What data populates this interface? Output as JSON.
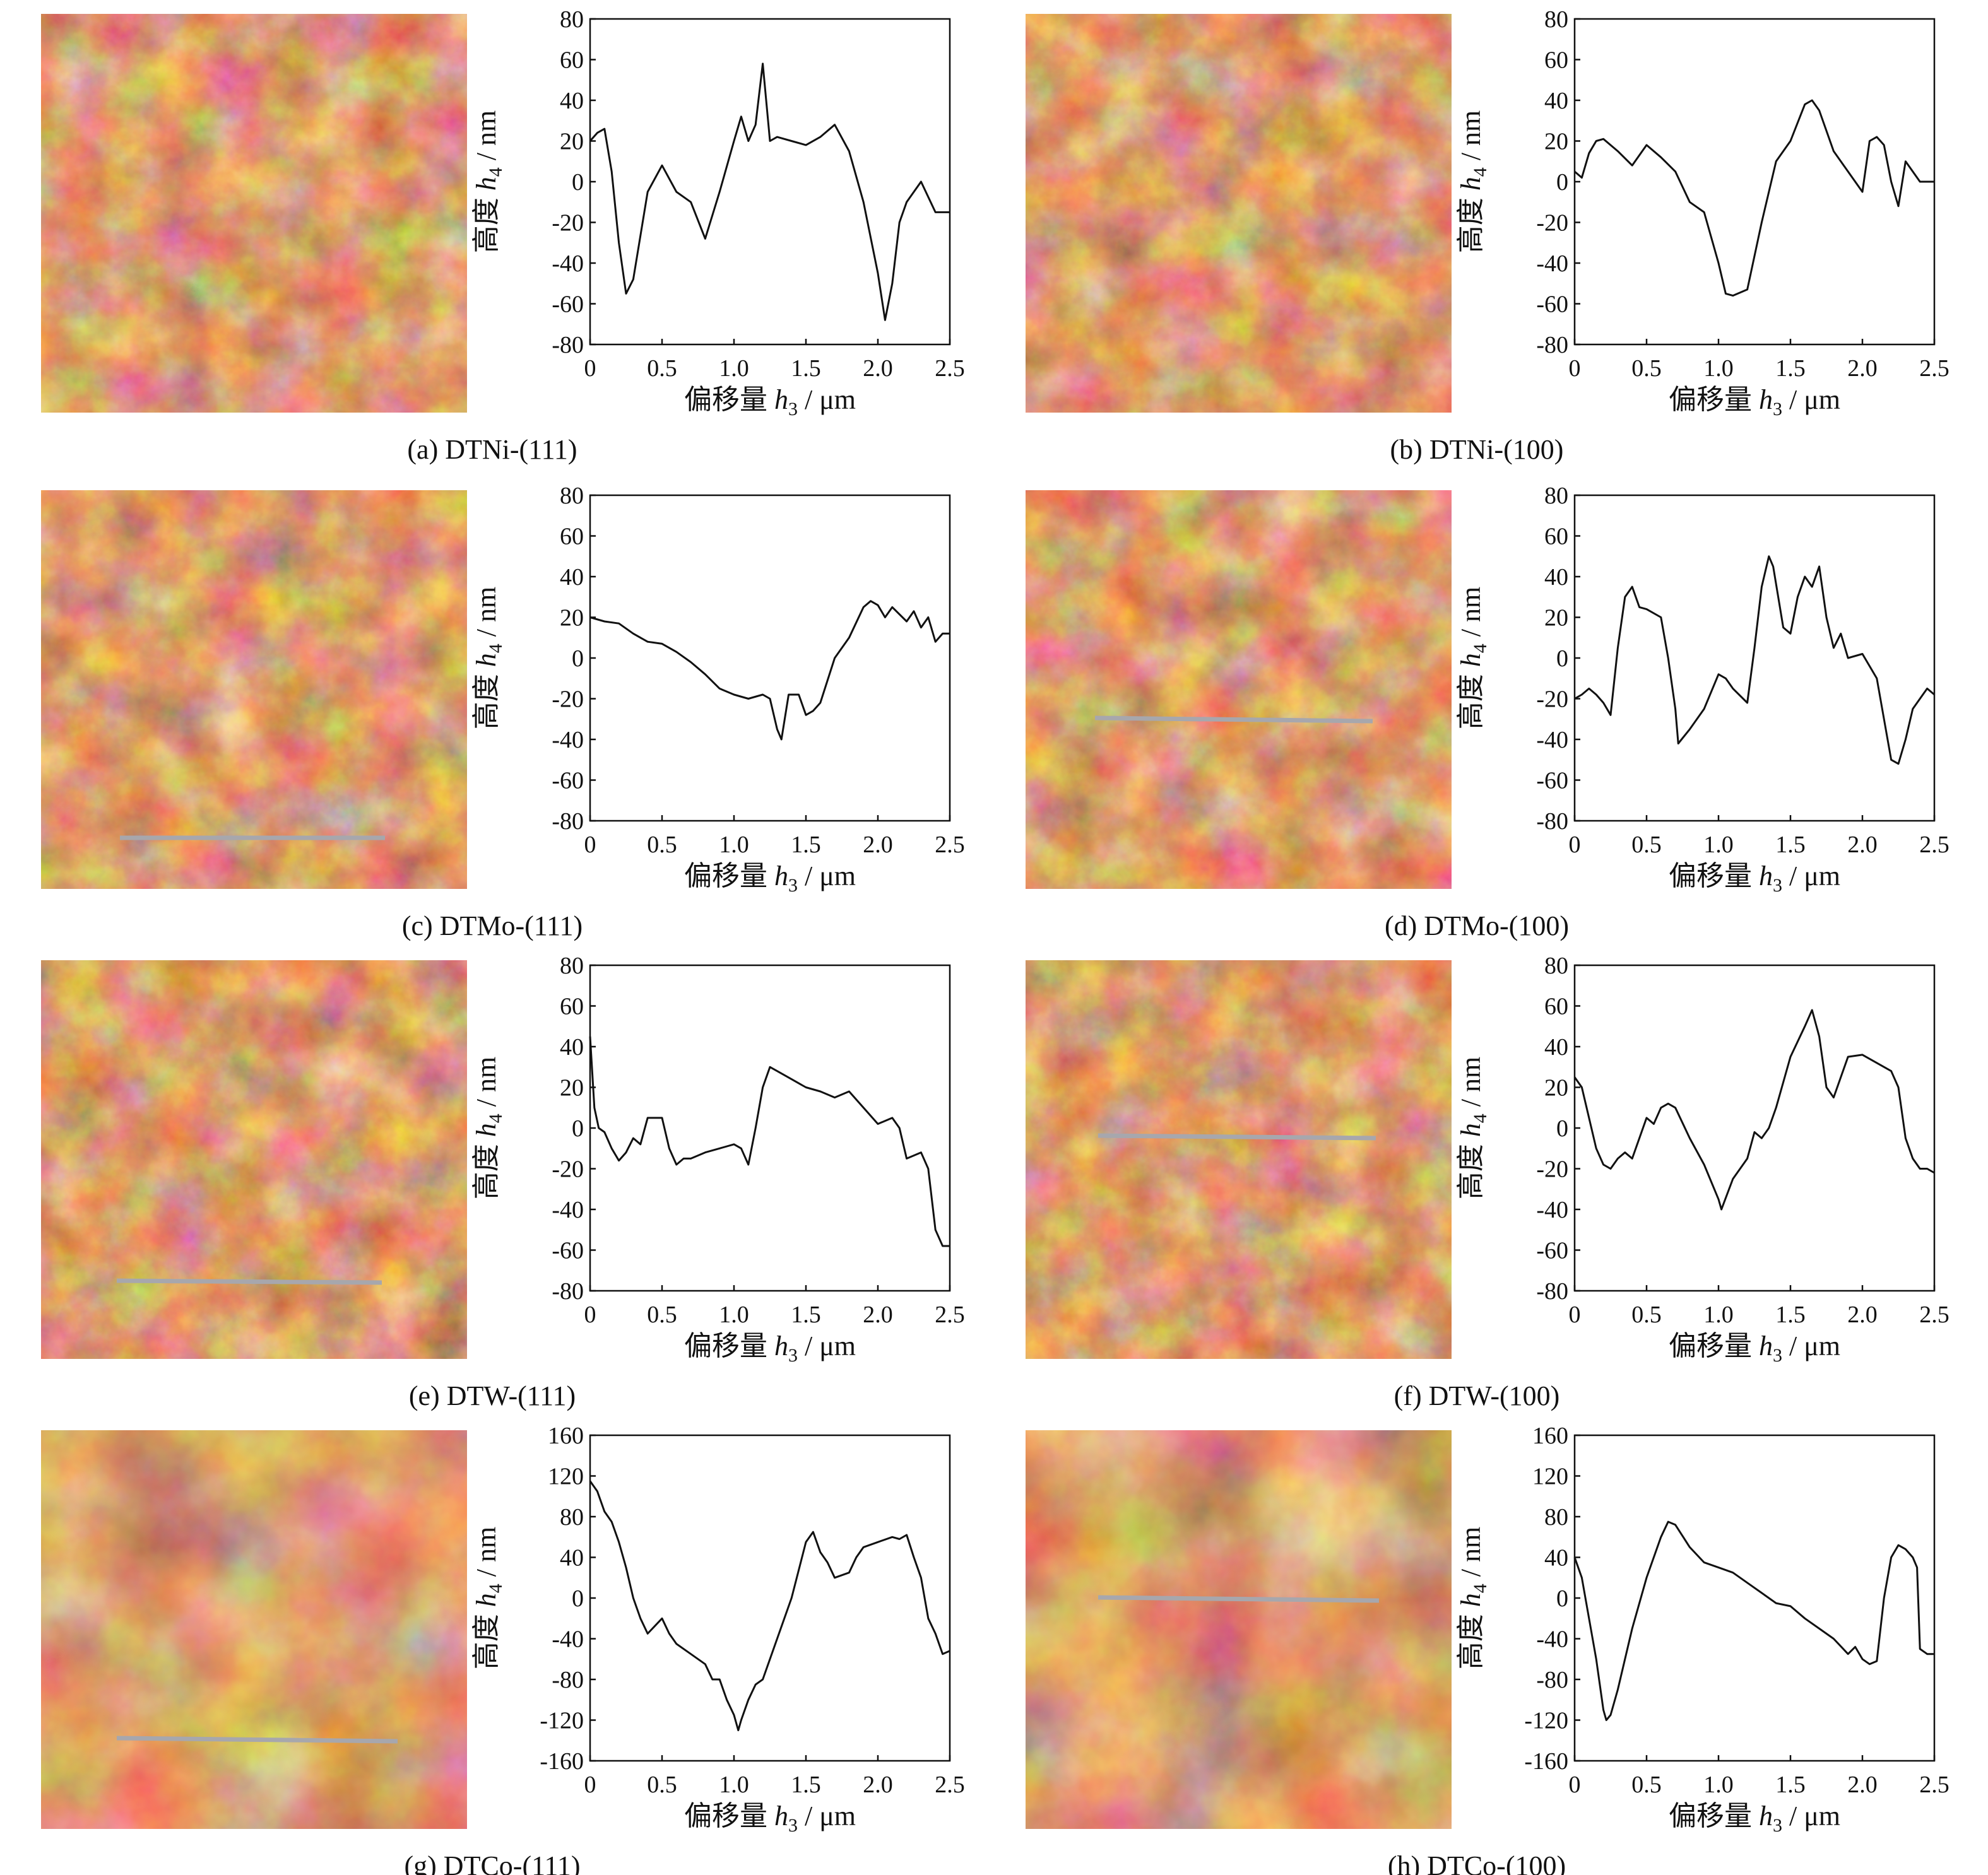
{
  "colors": {
    "afm_dark": "#4a1204",
    "afm_mid": "#b94a22",
    "afm_light": "#f2c08e",
    "scan_line": "#a7a7ad",
    "curve": "#111111"
  },
  "panels": [
    {
      "caption": "(a) DTNi-(111)",
      "scan_line": false,
      "chart_data": {
        "type": "line",
        "xlabel_text": "偏移量",
        "xlabel_sym": "h",
        "xlabel_sub": "3",
        "xlabel_unit": "/ μm",
        "ylabel_text": "高度",
        "ylabel_sym": "h",
        "ylabel_sub": "4",
        "ylabel_unit": "/ nm",
        "xlim": [
          0,
          2.5
        ],
        "ylim": [
          -80,
          80
        ],
        "xticks": [
          "0",
          "0.5",
          "1.0",
          "1.5",
          "2.0",
          "2.5"
        ],
        "yticks": [
          "-80",
          "-60",
          "-40",
          "-20",
          "0",
          "20",
          "40",
          "60",
          "80"
        ],
        "x": [
          0,
          0.05,
          0.1,
          0.15,
          0.2,
          0.25,
          0.3,
          0.4,
          0.5,
          0.6,
          0.7,
          0.8,
          0.9,
          1.0,
          1.05,
          1.1,
          1.15,
          1.2,
          1.25,
          1.3,
          1.4,
          1.5,
          1.6,
          1.7,
          1.8,
          1.9,
          2.0,
          2.05,
          2.1,
          2.15,
          2.2,
          2.3,
          2.4,
          2.5
        ],
        "y": [
          20,
          24,
          26,
          5,
          -30,
          -55,
          -48,
          -5,
          8,
          -5,
          -10,
          -28,
          -5,
          20,
          32,
          20,
          28,
          58,
          20,
          22,
          20,
          18,
          22,
          28,
          15,
          -10,
          -45,
          -68,
          -50,
          -20,
          -10,
          0,
          -15,
          -15
        ]
      }
    },
    {
      "caption": "(b) DTNi-(100)",
      "scan_line": false,
      "chart_data": {
        "type": "line",
        "xlabel_text": "偏移量",
        "xlabel_sym": "h",
        "xlabel_sub": "3",
        "xlabel_unit": "/ μm",
        "ylabel_text": "高度",
        "ylabel_sym": "h",
        "ylabel_sub": "4",
        "ylabel_unit": "/ nm",
        "xlim": [
          0,
          2.5
        ],
        "ylim": [
          -80,
          80
        ],
        "xticks": [
          "0",
          "0.5",
          "1.0",
          "1.5",
          "2.0",
          "2.5"
        ],
        "yticks": [
          "-80",
          "-60",
          "-40",
          "-20",
          "0",
          "20",
          "40",
          "60",
          "80"
        ],
        "x": [
          0,
          0.05,
          0.1,
          0.15,
          0.2,
          0.3,
          0.4,
          0.5,
          0.6,
          0.7,
          0.8,
          0.9,
          1.0,
          1.05,
          1.1,
          1.2,
          1.3,
          1.4,
          1.5,
          1.6,
          1.65,
          1.7,
          1.8,
          1.9,
          2.0,
          2.05,
          2.1,
          2.15,
          2.2,
          2.25,
          2.3,
          2.4,
          2.5
        ],
        "y": [
          5,
          2,
          14,
          20,
          21,
          15,
          8,
          18,
          12,
          5,
          -10,
          -15,
          -40,
          -55,
          -56,
          -53,
          -20,
          10,
          20,
          38,
          40,
          35,
          15,
          5,
          -5,
          20,
          22,
          18,
          0,
          -12,
          10,
          0,
          0
        ]
      }
    },
    {
      "caption": "(c) DTMo-(111)",
      "scan_line": true,
      "chart_data": {
        "type": "line",
        "xlabel_text": "偏移量",
        "xlabel_sym": "h",
        "xlabel_sub": "3",
        "xlabel_unit": "/ μm",
        "ylabel_text": "高度",
        "ylabel_sym": "h",
        "ylabel_sub": "4",
        "ylabel_unit": "/ nm",
        "xlim": [
          0,
          2.5
        ],
        "ylim": [
          -80,
          80
        ],
        "xticks": [
          "0",
          "0.5",
          "1.0",
          "1.5",
          "2.0",
          "2.5"
        ],
        "yticks": [
          "-80",
          "-60",
          "-40",
          "-20",
          "0",
          "20",
          "40",
          "60",
          "80"
        ],
        "x": [
          0,
          0.1,
          0.2,
          0.3,
          0.4,
          0.5,
          0.6,
          0.7,
          0.8,
          0.9,
          1.0,
          1.1,
          1.2,
          1.25,
          1.3,
          1.33,
          1.38,
          1.45,
          1.5,
          1.55,
          1.6,
          1.7,
          1.8,
          1.9,
          1.95,
          2.0,
          2.05,
          2.1,
          2.2,
          2.25,
          2.3,
          2.35,
          2.4,
          2.45,
          2.5
        ],
        "y": [
          20,
          18,
          17,
          12,
          8,
          7,
          3,
          -2,
          -8,
          -15,
          -18,
          -20,
          -18,
          -20,
          -35,
          -40,
          -18,
          -18,
          -28,
          -26,
          -22,
          0,
          10,
          25,
          28,
          26,
          20,
          25,
          18,
          23,
          15,
          20,
          8,
          12,
          12
        ]
      }
    },
    {
      "caption": "(d) DTMo-(100)",
      "scan_line": true,
      "chart_data": {
        "type": "line",
        "xlabel_text": "偏移量",
        "xlabel_sym": "h",
        "xlabel_sub": "3",
        "xlabel_unit": "/ μm",
        "ylabel_text": "高度",
        "ylabel_sym": "h",
        "ylabel_sub": "4",
        "ylabel_unit": "/ nm",
        "xlim": [
          0,
          2.5
        ],
        "ylim": [
          -80,
          80
        ],
        "xticks": [
          "0",
          "0.5",
          "1.0",
          "1.5",
          "2.0",
          "2.5"
        ],
        "yticks": [
          "-80",
          "-60",
          "-40",
          "-20",
          "0",
          "20",
          "40",
          "60",
          "80"
        ],
        "x": [
          0,
          0.05,
          0.1,
          0.15,
          0.2,
          0.25,
          0.3,
          0.35,
          0.4,
          0.45,
          0.5,
          0.6,
          0.65,
          0.7,
          0.72,
          0.8,
          0.9,
          1.0,
          1.05,
          1.1,
          1.2,
          1.25,
          1.3,
          1.35,
          1.38,
          1.45,
          1.5,
          1.55,
          1.6,
          1.65,
          1.7,
          1.75,
          1.8,
          1.85,
          1.9,
          2.0,
          2.1,
          2.15,
          2.2,
          2.25,
          2.3,
          2.35,
          2.4,
          2.45,
          2.5
        ],
        "y": [
          -20,
          -18,
          -15,
          -18,
          -22,
          -28,
          5,
          30,
          35,
          25,
          24,
          20,
          0,
          -25,
          -42,
          -35,
          -25,
          -8,
          -10,
          -15,
          -22,
          5,
          35,
          50,
          45,
          15,
          12,
          30,
          40,
          35,
          45,
          20,
          5,
          12,
          0,
          2,
          -10,
          -30,
          -50,
          -52,
          -40,
          -25,
          -20,
          -15,
          -18
        ]
      }
    },
    {
      "caption": "(e) DTW-(111)",
      "scan_line": true,
      "chart_data": {
        "type": "line",
        "xlabel_text": "偏移量",
        "xlabel_sym": "h",
        "xlabel_sub": "3",
        "xlabel_unit": "/ μm",
        "ylabel_text": "高度",
        "ylabel_sym": "h",
        "ylabel_sub": "4",
        "ylabel_unit": "/ nm",
        "xlim": [
          0,
          2.5
        ],
        "ylim": [
          -80,
          80
        ],
        "xticks": [
          "0",
          "0.5",
          "1.0",
          "1.5",
          "2.0",
          "2.5"
        ],
        "yticks": [
          "-80",
          "-60",
          "-40",
          "-20",
          "0",
          "20",
          "40",
          "60",
          "80"
        ],
        "x": [
          0,
          0.03,
          0.06,
          0.1,
          0.15,
          0.2,
          0.25,
          0.3,
          0.35,
          0.4,
          0.5,
          0.55,
          0.6,
          0.65,
          0.7,
          0.8,
          0.9,
          1.0,
          1.05,
          1.1,
          1.15,
          1.2,
          1.25,
          1.3,
          1.4,
          1.5,
          1.6,
          1.7,
          1.8,
          1.9,
          2.0,
          2.1,
          2.15,
          2.2,
          2.3,
          2.35,
          2.4,
          2.45,
          2.5
        ],
        "y": [
          45,
          10,
          0,
          -2,
          -10,
          -16,
          -12,
          -5,
          -8,
          5,
          5,
          -10,
          -18,
          -15,
          -15,
          -12,
          -10,
          -8,
          -10,
          -18,
          0,
          20,
          30,
          28,
          24,
          20,
          18,
          15,
          18,
          10,
          2,
          5,
          0,
          -15,
          -12,
          -20,
          -50,
          -58,
          -58
        ]
      }
    },
    {
      "caption": "(f) DTW-(100)",
      "scan_line": true,
      "chart_data": {
        "type": "line",
        "xlabel_text": "偏移量",
        "xlabel_sym": "h",
        "xlabel_sub": "3",
        "xlabel_unit": "/ μm",
        "ylabel_text": "高度",
        "ylabel_sym": "h",
        "ylabel_sub": "4",
        "ylabel_unit": "/ nm",
        "xlim": [
          0,
          2.5
        ],
        "ylim": [
          -80,
          80
        ],
        "xticks": [
          "0",
          "0.5",
          "1.0",
          "1.5",
          "2.0",
          "2.5"
        ],
        "yticks": [
          "-80",
          "-60",
          "-40",
          "-20",
          "0",
          "20",
          "40",
          "60",
          "80"
        ],
        "x": [
          0,
          0.05,
          0.1,
          0.15,
          0.2,
          0.25,
          0.3,
          0.35,
          0.4,
          0.5,
          0.55,
          0.6,
          0.65,
          0.7,
          0.8,
          0.9,
          1.0,
          1.02,
          1.1,
          1.2,
          1.25,
          1.3,
          1.35,
          1.4,
          1.5,
          1.6,
          1.65,
          1.7,
          1.75,
          1.8,
          1.9,
          2.0,
          2.1,
          2.2,
          2.25,
          2.3,
          2.35,
          2.4,
          2.45,
          2.5
        ],
        "y": [
          25,
          20,
          5,
          -10,
          -18,
          -20,
          -15,
          -12,
          -15,
          5,
          2,
          10,
          12,
          10,
          -5,
          -18,
          -35,
          -40,
          -25,
          -15,
          -2,
          -5,
          0,
          10,
          35,
          50,
          58,
          45,
          20,
          15,
          35,
          36,
          32,
          28,
          20,
          -5,
          -15,
          -20,
          -20,
          -22
        ]
      }
    },
    {
      "caption": "(g) DTCo-(111)",
      "scan_line": true,
      "chart_data": {
        "type": "line",
        "xlabel_text": "偏移量",
        "xlabel_sym": "h",
        "xlabel_sub": "3",
        "xlabel_unit": "/ μm",
        "ylabel_text": "高度",
        "ylabel_sym": "h",
        "ylabel_sub": "4",
        "ylabel_unit": "/ nm",
        "xlim": [
          0,
          2.5
        ],
        "ylim": [
          -160,
          160
        ],
        "xticks": [
          "0",
          "0.5",
          "1.0",
          "1.5",
          "2.0",
          "2.5"
        ],
        "yticks": [
          "-160",
          "-120",
          "-80",
          "-40",
          "0",
          "40",
          "80",
          "120",
          "160"
        ],
        "x": [
          0,
          0.05,
          0.1,
          0.15,
          0.2,
          0.25,
          0.3,
          0.35,
          0.4,
          0.5,
          0.55,
          0.6,
          0.7,
          0.8,
          0.85,
          0.9,
          0.95,
          1.0,
          1.03,
          1.05,
          1.1,
          1.15,
          1.2,
          1.3,
          1.4,
          1.5,
          1.55,
          1.6,
          1.65,
          1.7,
          1.8,
          1.85,
          1.9,
          2.0,
          2.1,
          2.15,
          2.2,
          2.25,
          2.3,
          2.35,
          2.4,
          2.45,
          2.5
        ],
        "y": [
          115,
          105,
          85,
          75,
          55,
          30,
          0,
          -20,
          -35,
          -20,
          -35,
          -45,
          -55,
          -65,
          -80,
          -80,
          -100,
          -115,
          -130,
          -120,
          -100,
          -85,
          -80,
          -40,
          0,
          55,
          65,
          45,
          35,
          20,
          25,
          40,
          50,
          55,
          60,
          58,
          62,
          40,
          20,
          -20,
          -35,
          -55,
          -52
        ]
      }
    },
    {
      "caption": "(h) DTCo-(100)",
      "scan_line": true,
      "chart_data": {
        "type": "line",
        "xlabel_text": "偏移量",
        "xlabel_sym": "h",
        "xlabel_sub": "3",
        "xlabel_unit": "/ μm",
        "ylabel_text": "高度",
        "ylabel_sym": "h",
        "ylabel_sub": "4",
        "ylabel_unit": "/ nm",
        "xlim": [
          0,
          2.5
        ],
        "ylim": [
          -160,
          160
        ],
        "xticks": [
          "0",
          "0.5",
          "1.0",
          "1.5",
          "2.0",
          "2.5"
        ],
        "yticks": [
          "-160",
          "-120",
          "-80",
          "-40",
          "0",
          "40",
          "80",
          "120",
          "160"
        ],
        "x": [
          0,
          0.05,
          0.1,
          0.15,
          0.2,
          0.22,
          0.25,
          0.3,
          0.4,
          0.5,
          0.6,
          0.65,
          0.7,
          0.8,
          0.9,
          1.0,
          1.1,
          1.2,
          1.3,
          1.4,
          1.5,
          1.6,
          1.7,
          1.8,
          1.9,
          1.95,
          2.0,
          2.05,
          2.1,
          2.15,
          2.2,
          2.25,
          2.3,
          2.35,
          2.38,
          2.4,
          2.45,
          2.5
        ],
        "y": [
          40,
          20,
          -20,
          -60,
          -110,
          -120,
          -115,
          -90,
          -30,
          20,
          60,
          75,
          72,
          50,
          35,
          30,
          25,
          15,
          5,
          -5,
          -8,
          -20,
          -30,
          -40,
          -55,
          -48,
          -60,
          -65,
          -62,
          0,
          40,
          52,
          48,
          40,
          30,
          -50,
          -55,
          -55
        ]
      }
    }
  ]
}
